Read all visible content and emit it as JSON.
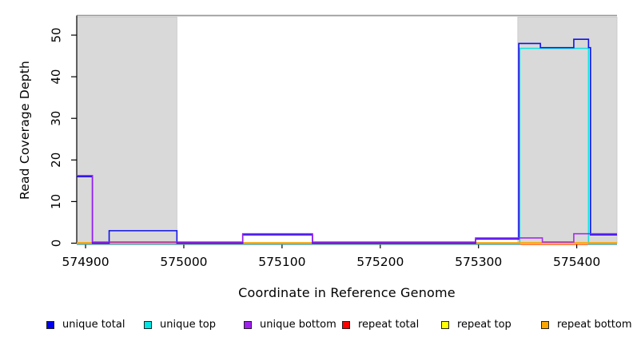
{
  "chart_data": {
    "type": "line",
    "subtype": "step-coverage",
    "title": "",
    "xlabel": "Coordinate in Reference Genome",
    "ylabel": "Read Coverage Depth",
    "xlim": [
      574891,
      575441
    ],
    "ylim": [
      0,
      54.5
    ],
    "x_ticks": [
      574900,
      575000,
      575100,
      575200,
      575300,
      575400
    ],
    "y_ticks": [
      0,
      10,
      20,
      30,
      40,
      50
    ],
    "grid": false,
    "legend_position": "bottom",
    "shade_color": "#d9d9d9",
    "shaded_regions": [
      {
        "x0": 574891,
        "x1": 574993
      },
      {
        "x0": 575340,
        "x1": 575441
      }
    ],
    "series": [
      {
        "name": "unique total",
        "color": "#0000ee",
        "steps": [
          [
            574891,
            16
          ],
          [
            574907,
            0
          ],
          [
            574924,
            3
          ],
          [
            574993,
            0
          ],
          [
            575060,
            2
          ],
          [
            575131,
            0
          ],
          [
            575297,
            1
          ],
          [
            575341,
            48
          ],
          [
            575363,
            47
          ],
          [
            575397,
            49
          ],
          [
            575412,
            47
          ],
          [
            575414,
            2
          ]
        ]
      },
      {
        "name": "unique top",
        "color": "#00e5e5",
        "steps": [
          [
            574891,
            0
          ],
          [
            575342,
            47
          ],
          [
            575412,
            0
          ]
        ]
      },
      {
        "name": "unique bottom",
        "color": "#a020f0",
        "steps": [
          [
            574891,
            16
          ],
          [
            574907,
            0
          ],
          [
            575060,
            2
          ],
          [
            575131,
            0
          ],
          [
            575297,
            1
          ],
          [
            575365,
            0
          ],
          [
            575397,
            2
          ]
        ]
      },
      {
        "name": "repeat total",
        "color": "#ff0000",
        "steps": [
          [
            574891,
            0
          ]
        ]
      },
      {
        "name": "repeat top",
        "color": "#ffff00",
        "steps": [
          [
            574891,
            0
          ]
        ]
      },
      {
        "name": "repeat bottom",
        "color": "#ffa500",
        "steps": [
          [
            574891,
            0
          ]
        ]
      }
    ]
  }
}
